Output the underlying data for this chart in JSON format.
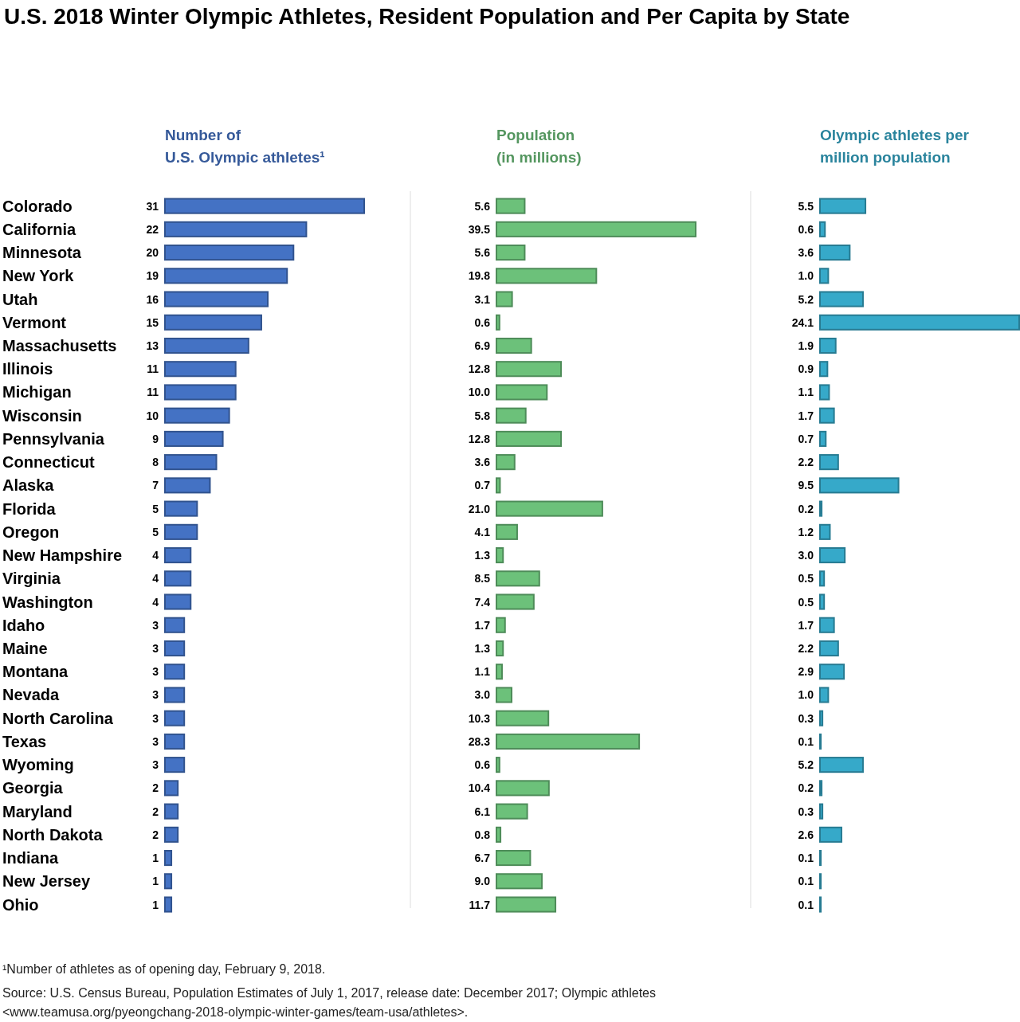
{
  "chart_data": [
    {
      "type": "bar",
      "orientation": "horizontal",
      "title": "U.S. 2018 Winter Olympic Athletes, Resident Population and Per Capita by State",
      "xlabel": "Number of\nU.S. Olympic athletes¹",
      "categories": [
        "Colorado",
        "California",
        "Minnesota",
        "New York",
        "Utah",
        "Vermont",
        "Massachusetts",
        "Illinois",
        "Michigan",
        "Wisconsin",
        "Pennsylvania",
        "Connecticut",
        "Alaska",
        "Florida",
        "Oregon",
        "New Hampshire",
        "Virginia",
        "Washington",
        "Idaho",
        "Maine",
        "Montana",
        "Nevada",
        "North Carolina",
        "Texas",
        "Wyoming",
        "Georgia",
        "Maryland",
        "North Dakota",
        "Indiana",
        "New Jersey",
        "Ohio"
      ],
      "values": [
        31,
        22,
        20,
        19,
        16,
        15,
        13,
        11,
        11,
        10,
        9,
        8,
        7,
        5,
        5,
        4,
        4,
        4,
        3,
        3,
        3,
        3,
        3,
        3,
        3,
        2,
        2,
        2,
        1,
        1,
        1
      ],
      "color": "#4472c4",
      "data_labels": true,
      "tick_labels": "y",
      "annotations": [
        "¹Number of athletes as of opening day,  February 9, 2018.",
        "Source: U.S. Census Bureau, Population Estimates of July 1, 2017, release date: December 2017; Olympic athletes\n<www.teamusa.org/pyeongchang-2018-olympic-winter-games/team-usa/athletes>."
      ]
    },
    {
      "type": "bar",
      "orientation": "horizontal",
      "xlabel": "Population\n(in millions)",
      "values": [
        5.6,
        39.5,
        5.6,
        19.8,
        3.1,
        0.6,
        6.9,
        12.8,
        10.0,
        5.8,
        12.8,
        3.6,
        0.7,
        21.0,
        4.1,
        1.3,
        8.5,
        7.4,
        1.7,
        1.3,
        1.1,
        3.0,
        10.3,
        28.3,
        0.6,
        10.4,
        6.1,
        0.8,
        6.7,
        9.0,
        11.7
      ],
      "value_labels": [
        "5.6",
        "39.5",
        "5.6",
        "19.8",
        "3.1",
        "0.6",
        "6.9",
        "12.8",
        "10.0",
        "5.8",
        "12.8",
        "3.6",
        "0.7",
        "21.0",
        "4.1",
        "1.3",
        "8.5",
        "7.4",
        "1.7",
        "1.3",
        "1.1",
        "3.0",
        "10.3",
        "28.3",
        "0.6",
        "10.4",
        "6.1",
        "0.8",
        "6.7",
        "9.0",
        "11.7"
      ],
      "color": "#6cc17a",
      "tick_labels": false
    },
    {
      "type": "bar",
      "orientation": "horizontal",
      "xlabel": "Olympic athletes per\nmillion population",
      "values": [
        5.5,
        0.6,
        3.6,
        1.0,
        5.2,
        24.1,
        1.9,
        0.9,
        1.1,
        1.7,
        0.7,
        2.2,
        9.5,
        0.2,
        1.2,
        3.0,
        0.5,
        0.5,
        1.7,
        2.2,
        2.9,
        1.0,
        0.3,
        0.1,
        5.2,
        0.2,
        0.3,
        2.6,
        0.1,
        0.1,
        0.1
      ],
      "value_labels": [
        "5.5",
        "0.6",
        "3.6",
        "1.0",
        "5.2",
        "24.1",
        "1.9",
        "0.9",
        "1.1",
        "1.7",
        "0.7",
        "2.2",
        "9.5",
        "0.2",
        "1.2",
        "3.0",
        "0.5",
        "0.5",
        "1.7",
        "2.2",
        "2.9",
        "1.0",
        "0.3",
        "0.1",
        "5.2",
        "0.2",
        "0.3",
        "2.6",
        "0.1",
        "0.1",
        "0.1"
      ],
      "color": "#36a9c9",
      "tick_labels": false
    }
  ]
}
